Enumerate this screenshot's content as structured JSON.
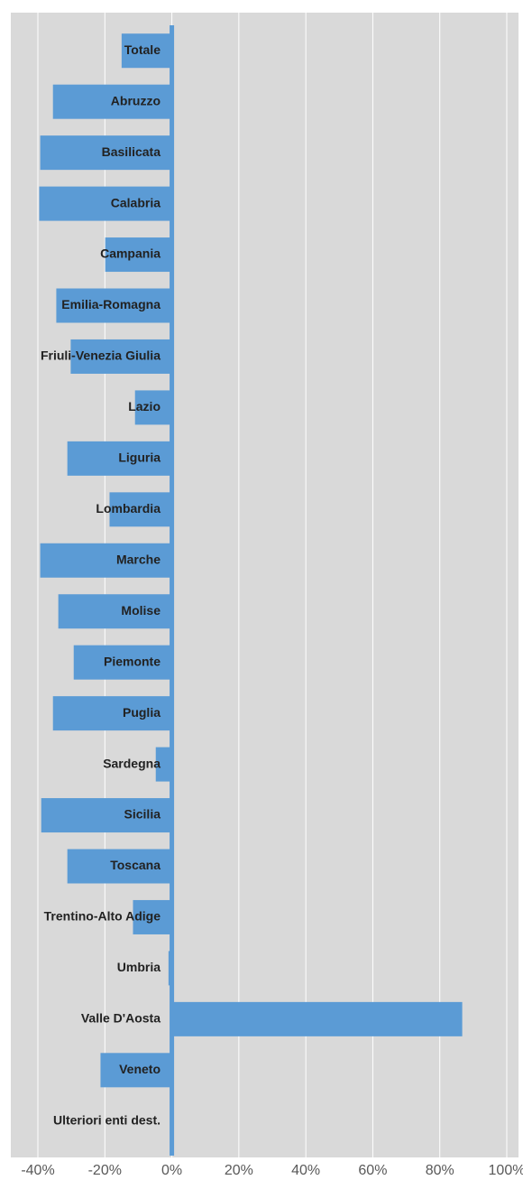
{
  "chart_data": {
    "type": "barh",
    "categories": [
      "Totale",
      "Abruzzo",
      "Basilicata",
      "Calabria",
      "Campania",
      "Emilia-Romagna",
      "Friuli-Venezia Giulia",
      "Lazio",
      "Liguria",
      "Lombardia",
      "Marche",
      "Molise",
      "Piemonte",
      "Puglia",
      "Sardegna",
      "Sicilia",
      "Toscana",
      "Trentino-Alto Adige",
      "Umbria",
      "Valle D'Aosta",
      "Veneto",
      "Ulteriori enti dest."
    ],
    "values": [
      -15,
      -35.5,
      -39.3,
      -39.6,
      -19.9,
      -34.5,
      -30.2,
      -11,
      -31.2,
      -18.6,
      -39.3,
      -33.9,
      -29.3,
      -35.5,
      -4.8,
      -39,
      -31.2,
      -11.6,
      -1,
      86.7,
      -21.3,
      0
    ],
    "color": "#5b9bd5",
    "xlim": [
      -40,
      100
    ],
    "xticks": [
      {
        "value": -40,
        "label": "-40%"
      },
      {
        "value": -20,
        "label": "-20%"
      },
      {
        "value": 0,
        "label": "0%"
      },
      {
        "value": 20,
        "label": "20%"
      },
      {
        "value": 40,
        "label": "40%"
      },
      {
        "value": 60,
        "label": "60%"
      },
      {
        "value": 80,
        "label": "80%"
      },
      {
        "value": 100,
        "label": "100%"
      }
    ],
    "grid": true
  }
}
